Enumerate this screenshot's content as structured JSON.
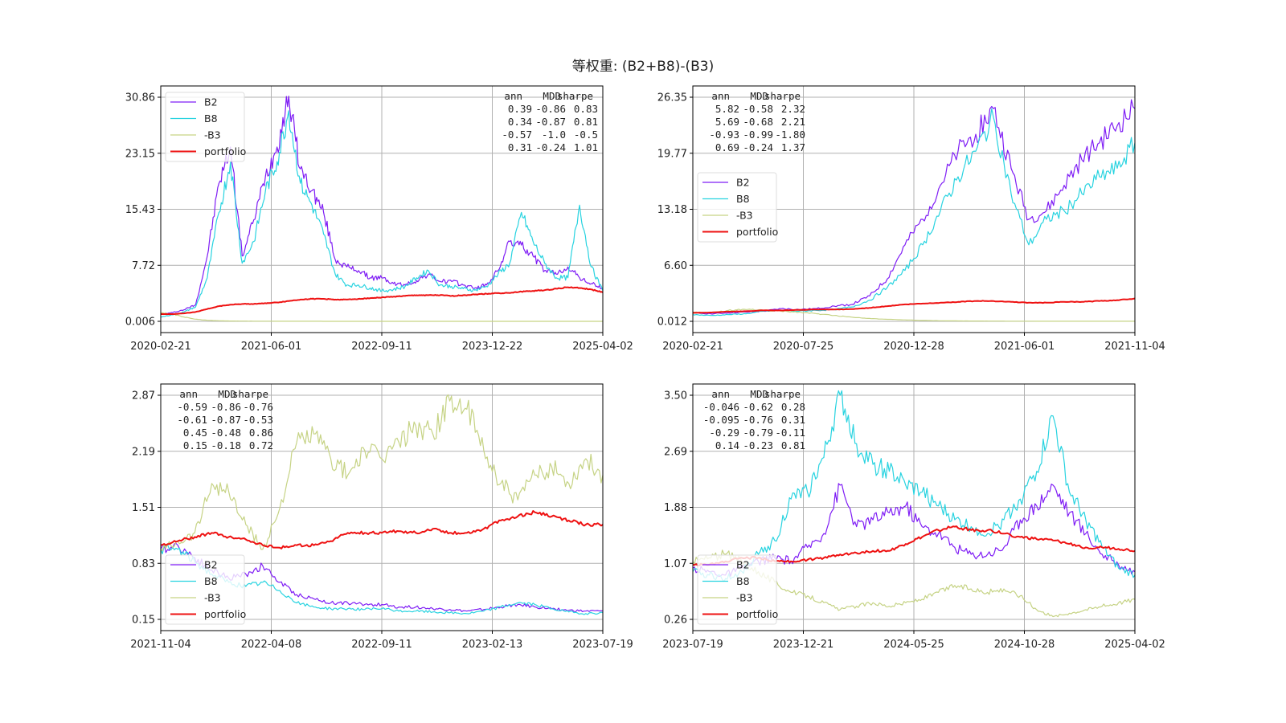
{
  "figure_title": "等权重: (B2+B8)-(B3)",
  "colors": {
    "B2": "#7f1df5",
    "B8": "#28d3e0",
    "-B3": "#c6d385",
    "portfolio": "#ee1111",
    "grid": "#b0b0b0"
  },
  "chart_data": [
    {
      "type": "line",
      "x_labels": [
        "2020-02-21",
        "2021-06-01",
        "2022-09-11",
        "2023-12-22",
        "2025-04-02"
      ],
      "y_ticks": [
        "0.006",
        "7.72",
        "15.43",
        "23.15",
        "30.86"
      ],
      "ylim": [
        0.006,
        30.86
      ],
      "legend_position": "top-left",
      "series": [
        {
          "name": "B2",
          "values": [
            1,
            1.2,
            1.6,
            2.3,
            9,
            19,
            24,
            9,
            14,
            20,
            24,
            31,
            21,
            18,
            15,
            8.5,
            7.5,
            7,
            6,
            6,
            5.2,
            5,
            5.6,
            6.5,
            5.5,
            5.5,
            5,
            4.6,
            5,
            7,
            11,
            10.5,
            9,
            7,
            6.5,
            7.5,
            6,
            5.2,
            4.5
          ]
        },
        {
          "name": "B8",
          "values": [
            0.6,
            0.9,
            1.3,
            2,
            6,
            15,
            22,
            8,
            11,
            18,
            22,
            29,
            19,
            16,
            12,
            6.5,
            5,
            5,
            4.6,
            4.2,
            4.4,
            4.8,
            6,
            7,
            5,
            4.8,
            4.5,
            4.3,
            4.8,
            6.5,
            8,
            15,
            11,
            8,
            6,
            6,
            16,
            7.5,
            4.2
          ]
        },
        {
          "name": "-B3",
          "values": [
            1.2,
            1,
            0.6,
            0.3,
            0.15,
            0.08,
            0.05,
            0.04,
            0.03,
            0.03,
            0.02,
            0.02,
            0.02,
            0.02,
            0.01,
            0.01,
            0.01,
            0.01,
            0.01,
            0.01,
            0.01,
            0.01,
            0.01,
            0.01,
            0.01,
            0.01,
            0.01,
            0.01,
            0.01,
            0.01,
            0.01,
            0.01,
            0.01,
            0.01,
            0.01,
            0.01,
            0.01,
            0.01,
            0.01
          ]
        },
        {
          "name": "portfolio",
          "values": [
            1,
            1,
            1.1,
            1.3,
            1.7,
            2.1,
            2.3,
            2.4,
            2.4,
            2.5,
            2.6,
            2.8,
            3,
            3.1,
            3.1,
            3,
            3,
            3.1,
            3.2,
            3.3,
            3.4,
            3.5,
            3.6,
            3.6,
            3.6,
            3.5,
            3.6,
            3.7,
            3.8,
            3.9,
            3.9,
            4.1,
            4.2,
            4.3,
            4.5,
            4.7,
            4.6,
            4.4,
            4
          ]
        }
      ],
      "stats": {
        "header": [
          "ann",
          "MDD",
          "sharpe"
        ],
        "rows": [
          [
            "0.39",
            "-0.86",
            "0.83"
          ],
          [
            "0.34",
            "-0.87",
            "0.81"
          ],
          [
            "-0.57",
            "-1.0",
            "-0.5"
          ],
          [
            "0.31",
            "-0.24",
            "1.01"
          ]
        ],
        "position": "top-right"
      }
    },
    {
      "type": "line",
      "x_labels": [
        "2020-02-21",
        "2020-07-25",
        "2020-12-28",
        "2021-06-01",
        "2021-11-04"
      ],
      "y_ticks": [
        "0.012",
        "6.60",
        "13.18",
        "19.77",
        "26.35"
      ],
      "ylim": [
        0.012,
        26.35
      ],
      "legend_position": "center-left",
      "series": [
        {
          "name": "B2",
          "values": [
            1,
            0.9,
            1,
            1.1,
            1.2,
            1.5,
            1.4,
            1.5,
            1.8,
            2,
            3,
            5,
            9,
            12,
            16,
            20,
            22,
            25,
            18,
            12,
            13,
            16,
            19,
            21,
            23,
            25
          ]
        },
        {
          "name": "B8",
          "values": [
            0.8,
            0.7,
            0.8,
            0.9,
            1.2,
            1.3,
            1.2,
            1.3,
            1.4,
            1.7,
            2.5,
            4,
            6,
            9,
            13,
            17,
            20,
            24,
            15,
            9,
            12,
            13,
            15,
            17,
            18,
            21
          ]
        },
        {
          "name": "-B3",
          "values": [
            1.1,
            1,
            1.3,
            1.4,
            1.3,
            1.2,
            1.1,
            0.9,
            0.7,
            0.5,
            0.35,
            0.25,
            0.18,
            0.12,
            0.08,
            0.06,
            0.05,
            0.04,
            0.03,
            0.03,
            0.02,
            0.02,
            0.02,
            0.02,
            0.02,
            0.02
          ]
        },
        {
          "name": "portfolio",
          "values": [
            1,
            1.05,
            1.15,
            1.2,
            1.3,
            1.3,
            1.35,
            1.4,
            1.4,
            1.45,
            1.6,
            1.8,
            2,
            2.1,
            2.2,
            2.3,
            2.4,
            2.4,
            2.3,
            2.2,
            2.2,
            2.3,
            2.3,
            2.4,
            2.5,
            2.7
          ]
        }
      ],
      "stats": {
        "header": [
          "ann",
          "MDD",
          "sharpe"
        ],
        "rows": [
          [
            "5.82",
            "-0.58",
            "2.32"
          ],
          [
            "5.69",
            "-0.68",
            "2.21"
          ],
          [
            "-0.93",
            "-0.99",
            "-1.80"
          ],
          [
            "0.69",
            "-0.24",
            "1.37"
          ]
        ],
        "position": "top-left"
      }
    },
    {
      "type": "line",
      "x_labels": [
        "2021-11-04",
        "2022-04-08",
        "2022-09-11",
        "2023-02-13",
        "2023-07-19"
      ],
      "y_ticks": [
        "0.15",
        "0.83",
        "1.51",
        "2.19",
        "2.87"
      ],
      "ylim": [
        0.15,
        2.87
      ],
      "legend_position": "bottom-left",
      "series": [
        {
          "name": "B2",
          "values": [
            1,
            1.05,
            0.9,
            0.75,
            0.65,
            0.7,
            0.8,
            0.6,
            0.45,
            0.4,
            0.35,
            0.35,
            0.33,
            0.33,
            0.3,
            0.3,
            0.28,
            0.27,
            0.25,
            0.27,
            0.3,
            0.33,
            0.3,
            0.28,
            0.26,
            0.25,
            0.25
          ]
        },
        {
          "name": "B8",
          "values": [
            1,
            1,
            0.85,
            0.7,
            0.6,
            0.55,
            0.6,
            0.5,
            0.35,
            0.3,
            0.28,
            0.28,
            0.27,
            0.28,
            0.25,
            0.25,
            0.24,
            0.23,
            0.22,
            0.25,
            0.3,
            0.35,
            0.33,
            0.28,
            0.24,
            0.22,
            0.23
          ]
        },
        {
          "name": "-B3",
          "values": [
            1,
            1.1,
            1.2,
            1.8,
            1.7,
            1.3,
            1,
            1.5,
            2.3,
            2.4,
            2.1,
            1.9,
            2.2,
            2.1,
            2.3,
            2.5,
            2.4,
            2.8,
            2.7,
            2.2,
            1.8,
            1.6,
            1.9,
            2,
            1.8,
            2.1,
            1.9
          ]
        },
        {
          "name": "portfolio",
          "values": [
            1.05,
            1.1,
            1.15,
            1.2,
            1.15,
            1.12,
            1.05,
            1.02,
            1.05,
            1.05,
            1.1,
            1.2,
            1.2,
            1.2,
            1.22,
            1.2,
            1.25,
            1.2,
            1.2,
            1.25,
            1.35,
            1.4,
            1.45,
            1.4,
            1.35,
            1.3,
            1.3
          ]
        }
      ],
      "stats": {
        "header": [
          "ann",
          "MDD",
          "sharpe"
        ],
        "rows": [
          [
            "-0.59",
            "-0.86",
            "-0.76"
          ],
          [
            "-0.61",
            "-0.87",
            "-0.53"
          ],
          [
            "0.45",
            "-0.48",
            "0.86"
          ],
          [
            "0.15",
            "-0.18",
            "0.72"
          ]
        ],
        "position": "top-left"
      }
    },
    {
      "type": "line",
      "x_labels": [
        "2023-07-19",
        "2023-12-21",
        "2024-05-25",
        "2024-10-28",
        "2025-04-02"
      ],
      "y_ticks": [
        "0.26",
        "1.07",
        "1.88",
        "2.69",
        "3.50"
      ],
      "ylim": [
        0.26,
        3.5
      ],
      "legend_position": "bottom-left",
      "series": [
        {
          "name": "B2",
          "values": [
            1,
            0.95,
            0.9,
            1,
            1.1,
            1.15,
            1.1,
            1.3,
            1.5,
            2.2,
            1.6,
            1.7,
            1.8,
            1.9,
            1.6,
            1.5,
            1.3,
            1.2,
            1.2,
            1.3,
            1.7,
            1.9,
            2.2,
            1.8,
            1.5,
            1.2,
            1.05,
            0.95
          ]
        },
        {
          "name": "B8",
          "values": [
            0.95,
            0.9,
            0.85,
            0.95,
            1.2,
            1.4,
            2,
            2.1,
            2.6,
            3.5,
            2.8,
            2.5,
            2.4,
            2.2,
            2.1,
            1.9,
            1.7,
            1.6,
            1.5,
            1.7,
            2,
            2.4,
            3.2,
            2.1,
            1.7,
            1.3,
            1,
            0.9
          ]
        },
        {
          "name": "-B3",
          "values": [
            1.1,
            1.15,
            1.2,
            1.1,
            0.95,
            0.8,
            0.65,
            0.6,
            0.5,
            0.4,
            0.45,
            0.5,
            0.45,
            0.5,
            0.55,
            0.65,
            0.75,
            0.7,
            0.65,
            0.7,
            0.6,
            0.4,
            0.3,
            0.35,
            0.4,
            0.45,
            0.5,
            0.55
          ]
        },
        {
          "name": "portfolio",
          "values": [
            1.05,
            1.05,
            1.1,
            1.15,
            1.15,
            1.1,
            1.1,
            1.12,
            1.15,
            1.2,
            1.22,
            1.25,
            1.25,
            1.35,
            1.45,
            1.55,
            1.6,
            1.55,
            1.55,
            1.5,
            1.45,
            1.42,
            1.4,
            1.35,
            1.3,
            1.3,
            1.28,
            1.25
          ]
        }
      ],
      "stats": {
        "header": [
          "ann",
          "MDD",
          "sharpe"
        ],
        "rows": [
          [
            "-0.046",
            "-0.62",
            "0.28"
          ],
          [
            "-0.095",
            "-0.76",
            "0.31"
          ],
          [
            "-0.29",
            "-0.79",
            "-0.11"
          ],
          [
            "0.14",
            "-0.23",
            "0.81"
          ]
        ],
        "position": "top-left"
      }
    }
  ]
}
